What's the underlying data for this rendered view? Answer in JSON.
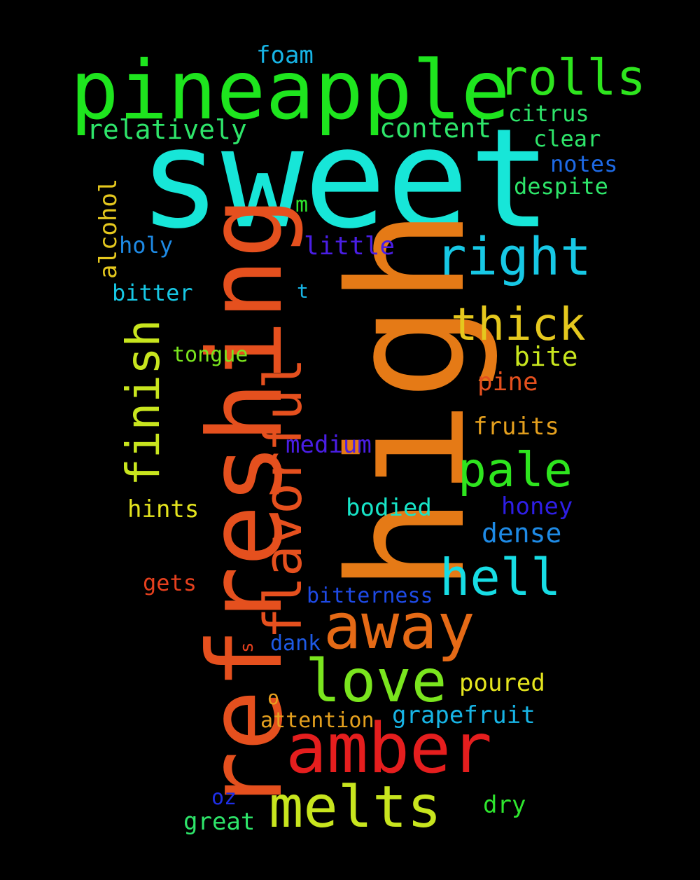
{
  "background": "#000000",
  "words": [
    {
      "key": "sweet",
      "text": "sweet",
      "color": "#17e6d8",
      "orientation": "horizontal"
    },
    {
      "key": "high",
      "text": "high",
      "color": "#e57a16",
      "orientation": "vertical"
    },
    {
      "key": "refreshing",
      "text": "refreshing",
      "color": "#e5501e",
      "orientation": "vertical"
    },
    {
      "key": "pineapple",
      "text": "pineapple",
      "color": "#1ee51e",
      "orientation": "horizontal"
    },
    {
      "key": "amber",
      "text": "amber",
      "color": "#e51e1e",
      "orientation": "horizontal"
    },
    {
      "key": "away",
      "text": "away",
      "color": "#e56a16",
      "orientation": "horizontal"
    },
    {
      "key": "love",
      "text": "love",
      "color": "#7ae51e",
      "orientation": "horizontal"
    },
    {
      "key": "melts",
      "text": "melts",
      "color": "#c8e51e",
      "orientation": "horizontal"
    },
    {
      "key": "flavorful",
      "text": "flavorful",
      "color": "#e5501e",
      "orientation": "vertical"
    },
    {
      "key": "hell",
      "text": "hell",
      "color": "#17dde5",
      "orientation": "horizontal"
    },
    {
      "key": "rolls",
      "text": "rolls",
      "color": "#2ee51e",
      "orientation": "horizontal"
    },
    {
      "key": "right",
      "text": "right",
      "color": "#17c8e5",
      "orientation": "horizontal"
    },
    {
      "key": "pale",
      "text": "pale",
      "color": "#2ee51e",
      "orientation": "horizontal"
    },
    {
      "key": "finish",
      "text": "finish",
      "color": "#c8e51e",
      "orientation": "vertical"
    },
    {
      "key": "thick",
      "text": "thick",
      "color": "#e5c81e",
      "orientation": "horizontal"
    },
    {
      "key": "dense",
      "text": "dense",
      "color": "#1e8ae5",
      "orientation": "horizontal"
    },
    {
      "key": "bite",
      "text": "bite",
      "color": "#c8e51e",
      "orientation": "horizontal"
    },
    {
      "key": "pine",
      "text": "pine",
      "color": "#e5501e",
      "orientation": "horizontal"
    },
    {
      "key": "relatively",
      "text": "relatively",
      "color": "#2ee56a",
      "orientation": "horizontal"
    },
    {
      "key": "content",
      "text": "content",
      "color": "#2ee56a",
      "orientation": "horizontal"
    },
    {
      "key": "little",
      "text": "little",
      "color": "#4a1ee5",
      "orientation": "horizontal"
    },
    {
      "key": "bodied",
      "text": "bodied",
      "color": "#17e5c8",
      "orientation": "horizontal"
    },
    {
      "key": "honey",
      "text": "honey",
      "color": "#2e1ee5",
      "orientation": "horizontal"
    },
    {
      "key": "hints",
      "text": "hints",
      "color": "#e5e51e",
      "orientation": "horizontal"
    },
    {
      "key": "medium",
      "text": "medium",
      "color": "#4a1ee5",
      "orientation": "horizontal"
    },
    {
      "key": "fruits",
      "text": "fruits",
      "color": "#e5a01e",
      "orientation": "horizontal"
    },
    {
      "key": "citrus",
      "text": "citrus",
      "color": "#2ee56a",
      "orientation": "horizontal"
    },
    {
      "key": "clear",
      "text": "clear",
      "color": "#2ee56a",
      "orientation": "horizontal"
    },
    {
      "key": "notes",
      "text": "notes",
      "color": "#1e6ae5",
      "orientation": "horizontal"
    },
    {
      "key": "despite",
      "text": "despite",
      "color": "#2ee56a",
      "orientation": "horizontal"
    },
    {
      "key": "alcohol",
      "text": "alcohol",
      "color": "#e5c81e",
      "orientation": "vertical"
    },
    {
      "key": "holy",
      "text": "holy",
      "color": "#1e8ae5",
      "orientation": "horizontal"
    },
    {
      "key": "bitter",
      "text": "bitter",
      "color": "#17c8e5",
      "orientation": "horizontal"
    },
    {
      "key": "foam",
      "text": "foam",
      "color": "#17b4e5",
      "orientation": "horizontal"
    },
    {
      "key": "tongue",
      "text": "tongue",
      "color": "#7ae51e",
      "orientation": "horizontal"
    },
    {
      "key": "poured",
      "text": "poured",
      "color": "#e5e51e",
      "orientation": "horizontal"
    },
    {
      "key": "grapefruit",
      "text": "grapefruit",
      "color": "#17b4e5",
      "orientation": "horizontal"
    },
    {
      "key": "attention",
      "text": "attention",
      "color": "#e5a01e",
      "orientation": "horizontal"
    },
    {
      "key": "gets",
      "text": "gets",
      "color": "#e5401e",
      "orientation": "horizontal"
    },
    {
      "key": "bitterness",
      "text": "bitterness",
      "color": "#1e4ae5",
      "orientation": "horizontal"
    },
    {
      "key": "dank",
      "text": "dank",
      "color": "#1e5ae5",
      "orientation": "horizontal"
    },
    {
      "key": "dry",
      "text": "dry",
      "color": "#2ee52e",
      "orientation": "horizontal"
    },
    {
      "key": "great",
      "text": "great",
      "color": "#2ee56a",
      "orientation": "horizontal"
    },
    {
      "key": "oz",
      "text": "oz",
      "color": "#1e2ee5",
      "orientation": "horizontal"
    },
    {
      "key": "m",
      "text": "m",
      "color": "#2ee52e",
      "orientation": "horizontal"
    },
    {
      "key": "t",
      "text": "t",
      "color": "#17b4e5",
      "orientation": "horizontal"
    },
    {
      "key": "o",
      "text": "o",
      "color": "#e5a01e",
      "orientation": "horizontal"
    },
    {
      "key": "s",
      "text": "s",
      "color": "#e5401e",
      "orientation": "vertical"
    }
  ]
}
